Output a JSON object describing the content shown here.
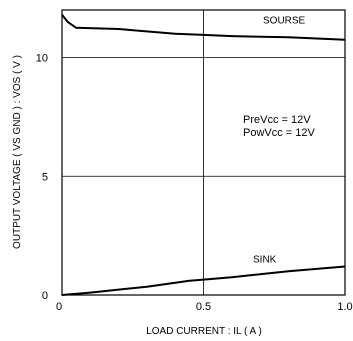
{
  "chart_data": {
    "type": "line",
    "xlabel": "LOAD CURRENT : IL ( A )",
    "ylabel": "OUTPUT VOLTAGE ( VS GND ) : VOS ( V )",
    "xlim": [
      0,
      1.0
    ],
    "ylim": [
      0,
      12
    ],
    "xticks": [
      "0",
      "0.5",
      "1.0"
    ],
    "yticks": [
      "5",
      "10"
    ],
    "grid": true,
    "annotations": [
      "PreVcc = 12V",
      "PowVcc = 12V"
    ],
    "series": [
      {
        "name": "SOURSE",
        "x": [
          0.0,
          0.02,
          0.05,
          0.2,
          0.4,
          0.5,
          0.6,
          0.8,
          1.0
        ],
        "y": [
          11.8,
          11.5,
          11.25,
          11.2,
          11.0,
          10.95,
          10.9,
          10.85,
          10.75
        ]
      },
      {
        "name": "SINK",
        "x": [
          0.0,
          0.1,
          0.3,
          0.45,
          0.5,
          0.6,
          0.8,
          1.0
        ],
        "y": [
          0.0,
          0.1,
          0.35,
          0.6,
          0.65,
          0.75,
          1.0,
          1.2
        ]
      }
    ]
  }
}
